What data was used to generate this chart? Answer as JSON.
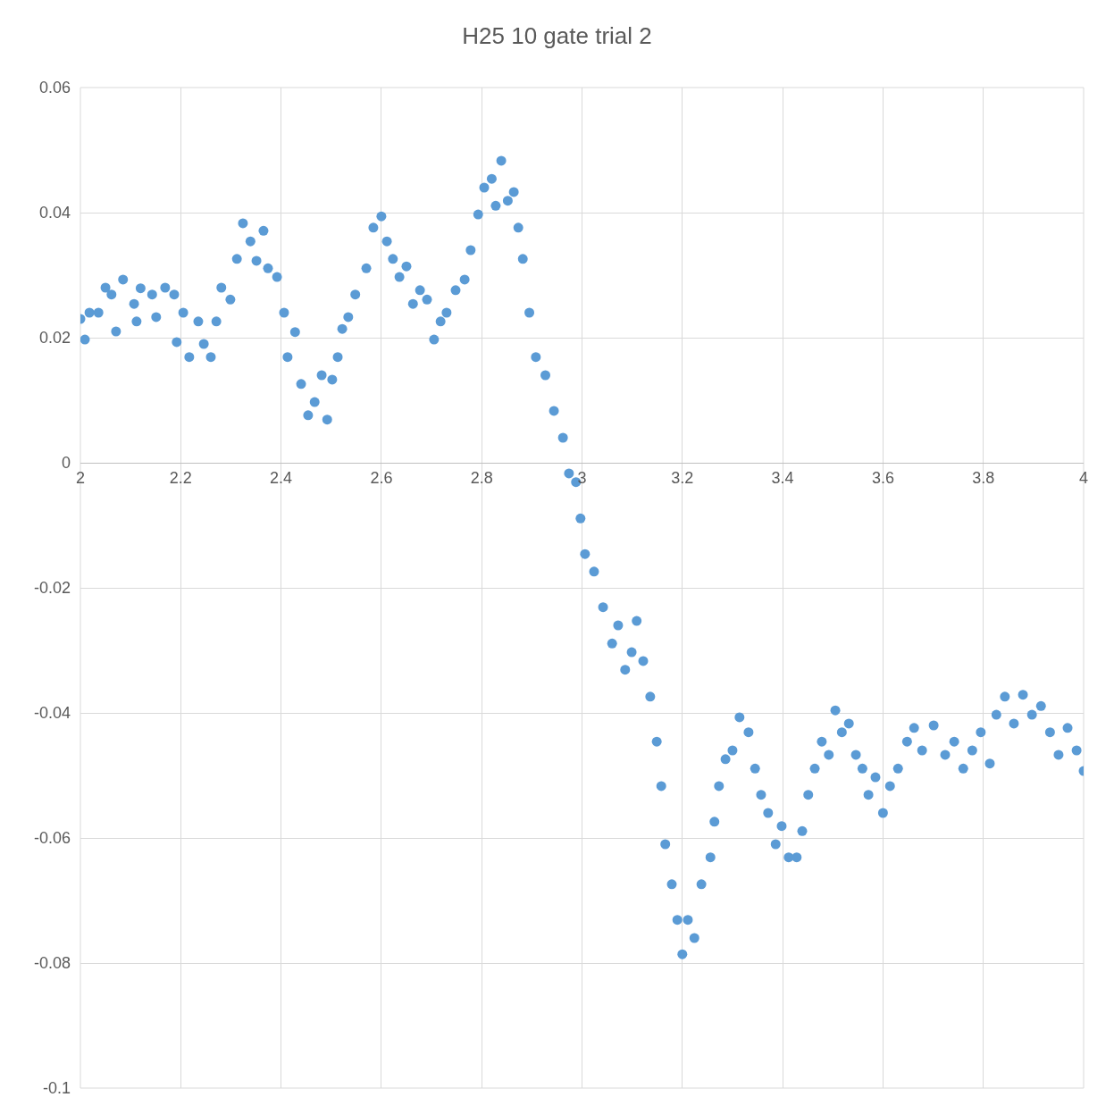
{
  "chart_data": {
    "type": "scatter",
    "title": "H25 10 gate trial 2",
    "x": [
      2.0,
      2.009,
      2.018,
      2.036,
      2.05,
      2.062,
      2.071,
      2.085,
      2.107,
      2.112,
      2.12,
      2.143,
      2.151,
      2.169,
      2.187,
      2.192,
      2.205,
      2.217,
      2.235,
      2.246,
      2.26,
      2.271,
      2.281,
      2.299,
      2.312,
      2.324,
      2.339,
      2.351,
      2.365,
      2.374,
      2.392,
      2.406,
      2.413,
      2.428,
      2.44,
      2.454,
      2.467,
      2.481,
      2.492,
      2.502,
      2.513,
      2.522,
      2.534,
      2.548,
      2.57,
      2.584,
      2.6,
      2.611,
      2.623,
      2.636,
      2.65,
      2.663,
      2.677,
      2.691,
      2.705,
      2.718,
      2.73,
      2.748,
      2.766,
      2.778,
      2.793,
      2.805,
      2.82,
      2.828,
      2.839,
      2.852,
      2.864,
      2.873,
      2.882,
      2.895,
      2.908,
      2.927,
      2.944,
      2.962,
      2.974,
      2.988,
      2.997,
      3.006,
      3.024,
      3.042,
      3.06,
      3.072,
      3.086,
      3.099,
      3.109,
      3.122,
      3.136,
      3.149,
      3.158,
      3.166,
      3.179,
      3.19,
      3.2,
      3.211,
      3.224,
      3.238,
      3.256,
      3.264,
      3.273,
      3.286,
      3.3,
      3.314,
      3.332,
      3.345,
      3.357,
      3.371,
      3.386,
      3.398,
      3.412,
      3.428,
      3.439,
      3.451,
      3.464,
      3.478,
      3.492,
      3.505,
      3.518,
      3.532,
      3.546,
      3.559,
      3.571,
      3.585,
      3.6,
      3.614,
      3.63,
      3.648,
      3.662,
      3.678,
      3.701,
      3.724,
      3.742,
      3.76,
      3.778,
      3.795,
      3.813,
      3.826,
      3.843,
      3.861,
      3.879,
      3.897,
      3.915,
      3.933,
      3.95,
      3.968,
      3.986,
      4.0
    ],
    "series": [
      {
        "color": "#5b9bd5",
        "values": [
          0.023,
          0.0197,
          0.024,
          0.024,
          0.028,
          0.0269,
          0.021,
          0.0293,
          0.0254,
          0.0226,
          0.0279,
          0.0269,
          0.0233,
          0.028,
          0.0269,
          0.0193,
          0.024,
          0.0169,
          0.0226,
          0.019,
          0.0169,
          0.0226,
          0.028,
          0.0261,
          0.0326,
          0.0383,
          0.0354,
          0.0323,
          0.0371,
          0.0311,
          0.0297,
          0.024,
          0.0169,
          0.0209,
          0.0126,
          0.0076,
          0.0097,
          0.014,
          0.0069,
          0.0133,
          0.0169,
          0.0214,
          0.0233,
          0.0269,
          0.0311,
          0.0376,
          0.0394,
          0.0354,
          0.0326,
          0.0297,
          0.0314,
          0.0254,
          0.0276,
          0.0261,
          0.0197,
          0.0226,
          0.024,
          0.0276,
          0.0293,
          0.034,
          0.0397,
          0.044,
          0.0454,
          0.0411,
          0.0483,
          0.0419,
          0.0433,
          0.0376,
          0.0326,
          0.024,
          0.0169,
          0.014,
          0.0083,
          0.004,
          -0.0017,
          -0.0031,
          -0.0089,
          -0.0146,
          -0.0174,
          -0.0231,
          -0.0289,
          -0.026,
          -0.0331,
          -0.0303,
          -0.0253,
          -0.0317,
          -0.0374,
          -0.0446,
          -0.0517,
          -0.061,
          -0.0674,
          -0.0731,
          -0.0786,
          -0.0731,
          -0.076,
          -0.0674,
          -0.0631,
          -0.0574,
          -0.0517,
          -0.0474,
          -0.046,
          -0.0407,
          -0.0431,
          -0.0489,
          -0.0531,
          -0.056,
          -0.061,
          -0.0581,
          -0.0631,
          -0.0631,
          -0.0589,
          -0.0531,
          -0.0489,
          -0.0446,
          -0.0467,
          -0.0396,
          -0.0431,
          -0.0417,
          -0.0467,
          -0.0489,
          -0.0531,
          -0.0503,
          -0.056,
          -0.0517,
          -0.0489,
          -0.0446,
          -0.0424,
          -0.046,
          -0.042,
          -0.0467,
          -0.0446,
          -0.0489,
          -0.046,
          -0.0431,
          -0.0481,
          -0.0403,
          -0.0374,
          -0.0417,
          -0.0371,
          -0.0403,
          -0.0389,
          -0.0431,
          -0.0467,
          -0.0424,
          -0.046,
          -0.0493
        ]
      }
    ],
    "xlim": [
      2,
      4
    ],
    "xticks": [
      2,
      2.2,
      2.4,
      2.6,
      2.8,
      3,
      3.2,
      3.4,
      3.6,
      3.8,
      4
    ],
    "ylim": [
      -0.1,
      0.06
    ],
    "yticks": [
      -0.1,
      -0.08,
      -0.06,
      -0.04,
      -0.02,
      0,
      0.02,
      0.04,
      0.06
    ],
    "grid": true,
    "marker": "circle"
  }
}
